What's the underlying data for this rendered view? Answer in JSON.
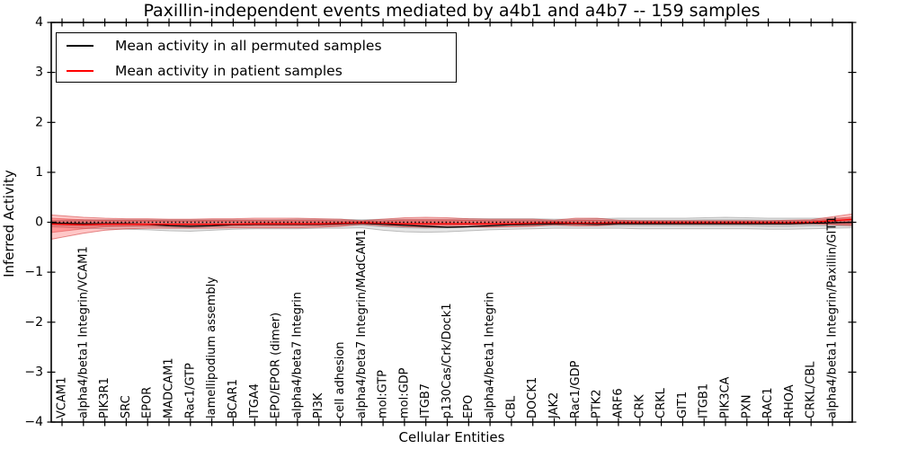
{
  "title": "Paxillin-independent events mediated by a4b1 and a4b7 -- 159 samples",
  "legend": {
    "entries": [
      {
        "label": "Mean activity in all permuted samples",
        "color": "#000000"
      },
      {
        "label": "Mean activity in patient samples",
        "color": "#ff0000"
      }
    ]
  },
  "chart_data": {
    "type": "line",
    "title": "Paxillin-independent events mediated by a4b1 and a4b7 -- 159 samples",
    "xlabel": "Cellular Entities",
    "ylabel": "Inferred Activity",
    "ylim": [
      -4,
      4
    ],
    "yticks": [
      -4,
      -3,
      -2,
      -1,
      0,
      1,
      2,
      3,
      4
    ],
    "grid": false,
    "legend_position": "upper-left",
    "zero_line": {
      "y": 0,
      "style": "dotted",
      "color": "#000000"
    },
    "categories": [
      "VCAM1",
      "alpha4/beta1 Integrin/VCAM1",
      "PIK3R1",
      "SRC",
      "EPOR",
      "MADCAM1",
      "Rac1/GTP",
      "lamellipodium assembly",
      "BCAR1",
      "ITGA4",
      "EPO/EPOR (dimer)",
      "alpha4/beta7 Integrin",
      "PI3K",
      "cell adhesion",
      "alpha4/beta7 Integrin/MAdCAM1",
      "mol:GTP",
      "mol:GDP",
      "ITGB7",
      "p130Cas/Crk/Dock1",
      "EPO",
      "alpha4/beta1 Integrin",
      "CBL",
      "DOCK1",
      "JAK2",
      "Rac1/GDP",
      "PTK2",
      "ARF6",
      "CRK",
      "CRKL",
      "GIT1",
      "ITGB1",
      "PIK3CA",
      "PXN",
      "RAC1",
      "RHOA",
      "CRKL/CBL",
      "alpha4/beta1 Integrin/Paxillin/GIT1"
    ],
    "series": [
      {
        "name": "Mean activity in all permuted samples",
        "color": "#000000",
        "width": 1.3,
        "values": [
          -0.02,
          -0.03,
          -0.03,
          -0.03,
          -0.04,
          -0.07,
          -0.08,
          -0.07,
          -0.05,
          -0.04,
          -0.04,
          -0.04,
          -0.04,
          -0.03,
          -0.02,
          -0.04,
          -0.06,
          -0.08,
          -0.1,
          -0.09,
          -0.07,
          -0.05,
          -0.04,
          -0.03,
          -0.03,
          -0.04,
          -0.03,
          -0.03,
          -0.03,
          -0.03,
          -0.03,
          -0.03,
          -0.03,
          -0.03,
          -0.03,
          -0.02,
          -0.01
        ]
      },
      {
        "name": "Mean activity in patient samples",
        "color": "#ff0000",
        "width": 1.4,
        "values": [
          -0.04,
          -0.05,
          -0.04,
          -0.04,
          -0.04,
          -0.04,
          -0.04,
          -0.04,
          -0.04,
          -0.03,
          -0.03,
          -0.03,
          -0.03,
          -0.02,
          -0.01,
          -0.02,
          -0.03,
          -0.03,
          -0.03,
          -0.03,
          -0.03,
          -0.03,
          -0.02,
          -0.01,
          -0.02,
          -0.02,
          -0.01,
          -0.01,
          -0.01,
          -0.01,
          -0.01,
          -0.01,
          -0.01,
          -0.01,
          -0.01,
          0.0,
          0.03
        ]
      }
    ],
    "bands": [
      {
        "name": "permuted-std-outer",
        "color": "#888888",
        "fill_opacity": 0.22,
        "stroke": "#777777",
        "stroke_opacity": 0.45,
        "upper": [
          0.04,
          0.05,
          0.05,
          0.05,
          0.05,
          0.05,
          0.05,
          0.05,
          0.05,
          0.05,
          0.05,
          0.06,
          0.06,
          0.06,
          0.05,
          0.06,
          0.06,
          0.06,
          0.06,
          0.07,
          0.07,
          0.07,
          0.07,
          0.06,
          0.06,
          0.07,
          0.08,
          0.08,
          0.08,
          0.08,
          0.09,
          0.1,
          0.09,
          0.08,
          0.08,
          0.08,
          0.08
        ],
        "lower": [
          -0.1,
          -0.12,
          -0.13,
          -0.14,
          -0.15,
          -0.17,
          -0.18,
          -0.16,
          -0.14,
          -0.13,
          -0.13,
          -0.13,
          -0.12,
          -0.12,
          -0.11,
          -0.16,
          -0.19,
          -0.2,
          -0.19,
          -0.17,
          -0.15,
          -0.14,
          -0.13,
          -0.12,
          -0.12,
          -0.12,
          -0.12,
          -0.13,
          -0.13,
          -0.13,
          -0.13,
          -0.13,
          -0.13,
          -0.14,
          -0.14,
          -0.13,
          -0.12
        ]
      },
      {
        "name": "permuted-std-inner",
        "color": "#888888",
        "fill_opacity": 0.25,
        "stroke": "#777777",
        "stroke_opacity": 0.4,
        "upper": [
          0.02,
          0.03,
          0.03,
          0.03,
          0.03,
          0.03,
          0.03,
          0.03,
          0.03,
          0.03,
          0.03,
          0.03,
          0.03,
          0.03,
          0.03,
          0.03,
          0.03,
          0.03,
          0.03,
          0.04,
          0.04,
          0.04,
          0.04,
          0.03,
          0.03,
          0.04,
          0.04,
          0.04,
          0.04,
          0.04,
          0.05,
          0.05,
          0.05,
          0.04,
          0.04,
          0.04,
          0.04
        ],
        "lower": [
          -0.06,
          -0.07,
          -0.07,
          -0.08,
          -0.08,
          -0.1,
          -0.11,
          -0.09,
          -0.08,
          -0.07,
          -0.07,
          -0.07,
          -0.07,
          -0.07,
          -0.06,
          -0.09,
          -0.11,
          -0.12,
          -0.11,
          -0.1,
          -0.09,
          -0.08,
          -0.07,
          -0.07,
          -0.07,
          -0.07,
          -0.07,
          -0.07,
          -0.07,
          -0.07,
          -0.07,
          -0.07,
          -0.07,
          -0.08,
          -0.08,
          -0.07,
          -0.07
        ]
      },
      {
        "name": "patient-std-outer",
        "color": "#ff0000",
        "fill_opacity": 0.22,
        "stroke": "#cc2222",
        "stroke_opacity": 0.5,
        "upper": [
          0.13,
          0.1,
          0.08,
          0.07,
          0.07,
          0.06,
          0.06,
          0.07,
          0.07,
          0.08,
          0.08,
          0.08,
          0.07,
          0.06,
          0.03,
          0.06,
          0.09,
          0.1,
          0.09,
          0.07,
          0.06,
          0.06,
          0.06,
          0.04,
          0.08,
          0.08,
          0.04,
          0.03,
          0.03,
          0.03,
          0.03,
          0.03,
          0.03,
          0.03,
          0.04,
          0.05,
          0.11
        ],
        "lower": [
          -0.3,
          -0.22,
          -0.16,
          -0.13,
          -0.12,
          -0.12,
          -0.12,
          -0.12,
          -0.11,
          -0.11,
          -0.11,
          -0.11,
          -0.1,
          -0.08,
          -0.04,
          -0.07,
          -0.09,
          -0.1,
          -0.1,
          -0.09,
          -0.1,
          -0.09,
          -0.08,
          -0.05,
          -0.07,
          -0.07,
          -0.04,
          -0.04,
          -0.04,
          -0.04,
          -0.04,
          -0.04,
          -0.04,
          -0.04,
          -0.04,
          -0.03,
          -0.05
        ]
      },
      {
        "name": "patient-std-inner",
        "color": "#ff0000",
        "fill_opacity": 0.25,
        "stroke": "#cc2222",
        "stroke_opacity": 0.4,
        "upper": [
          0.07,
          0.05,
          0.04,
          0.04,
          0.04,
          0.03,
          0.03,
          0.04,
          0.04,
          0.04,
          0.04,
          0.04,
          0.04,
          0.03,
          0.02,
          0.03,
          0.05,
          0.05,
          0.05,
          0.04,
          0.03,
          0.03,
          0.03,
          0.02,
          0.04,
          0.04,
          0.02,
          0.02,
          0.02,
          0.02,
          0.02,
          0.02,
          0.02,
          0.02,
          0.02,
          0.03,
          0.07
        ],
        "lower": [
          -0.18,
          -0.13,
          -0.09,
          -0.08,
          -0.07,
          -0.07,
          -0.07,
          -0.07,
          -0.06,
          -0.06,
          -0.06,
          -0.06,
          -0.06,
          -0.05,
          -0.02,
          -0.04,
          -0.05,
          -0.06,
          -0.06,
          -0.05,
          -0.06,
          -0.05,
          -0.05,
          -0.03,
          -0.04,
          -0.04,
          -0.02,
          -0.02,
          -0.02,
          -0.02,
          -0.02,
          -0.02,
          -0.02,
          -0.02,
          -0.02,
          -0.02,
          -0.03
        ]
      }
    ]
  },
  "axes": {
    "xlabel": "Cellular Entities",
    "ylabel": "Inferred Activity"
  }
}
